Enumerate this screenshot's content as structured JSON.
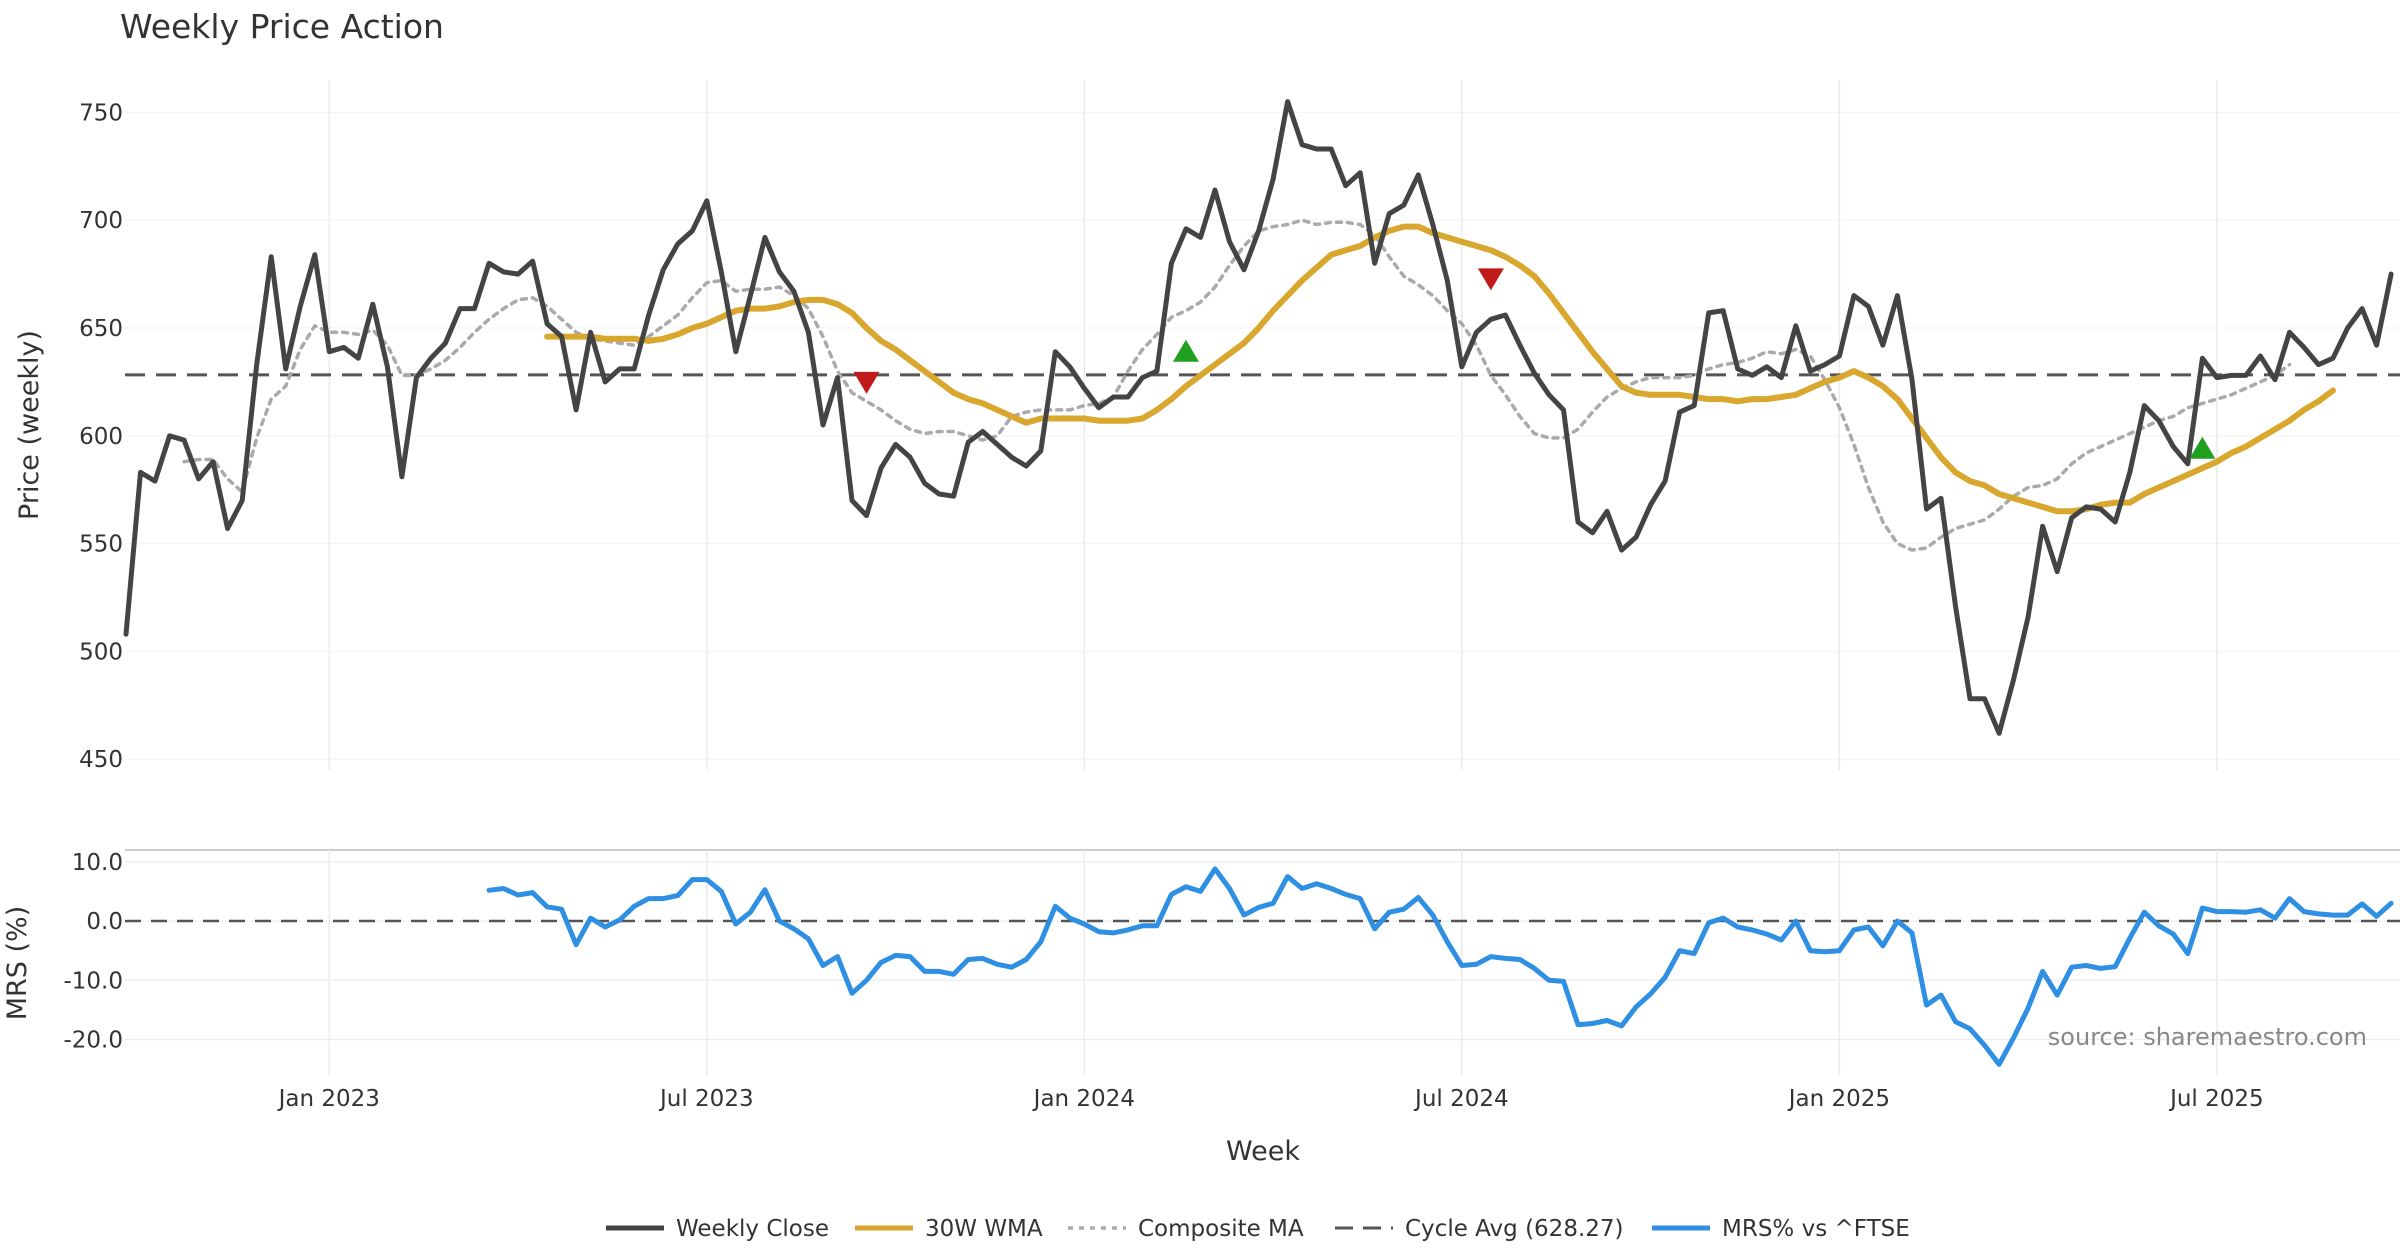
{
  "chart_data": {
    "type": "line",
    "title": "Weekly Price Action",
    "xlabel": "Week",
    "source": "source: sharemaestro.com",
    "x_ticks": [
      "Jan 2023",
      "Jul 2023",
      "Jan 2024",
      "Jul 2024",
      "Jan 2025",
      "Jul 2025"
    ],
    "x_tick_weeks": [
      14,
      40,
      66,
      92,
      118,
      144
    ],
    "price_panel": {
      "ylabel": "Price (weekly)",
      "ylim": [
        445,
        765
      ],
      "yticks": [
        450,
        500,
        550,
        600,
        650,
        700,
        750
      ],
      "cycle_avg": 628.27,
      "series": [
        {
          "name": "Weekly Close",
          "color": "#444444",
          "start_week": 0,
          "values": [
            508,
            583,
            579,
            600,
            598,
            580,
            588,
            557,
            570,
            633,
            683,
            631,
            660,
            684,
            639,
            641,
            636,
            661,
            632,
            581,
            627,
            636,
            643,
            659,
            659,
            680,
            676,
            675,
            681,
            652,
            646,
            612,
            648,
            625,
            631,
            631,
            656,
            677,
            689,
            695,
            709,
            676,
            639,
            665,
            692,
            676,
            667,
            648,
            605,
            627,
            570,
            563,
            585,
            596,
            590,
            578,
            573,
            572,
            597,
            602,
            596,
            590,
            586,
            593,
            639,
            632,
            622,
            613,
            618,
            618,
            627,
            630,
            680,
            696,
            692,
            714,
            690,
            677,
            695,
            719,
            755,
            735,
            733,
            733,
            716,
            722,
            680,
            703,
            707,
            721,
            698,
            672,
            632,
            648,
            654,
            656,
            642,
            629,
            619,
            612,
            560,
            555,
            565,
            547,
            553,
            568,
            579,
            611,
            614,
            657,
            658,
            631,
            628,
            632,
            627,
            651,
            630,
            633,
            637,
            665,
            660,
            642,
            665,
            626,
            566,
            571,
            521,
            478,
            478,
            462,
            487,
            516,
            558,
            537,
            562,
            567,
            566,
            560,
            583,
            614,
            607,
            595,
            587,
            636,
            627,
            628,
            628,
            637,
            626,
            648,
            641,
            633,
            636,
            650,
            659,
            642,
            675
          ]
        },
        {
          "name": "30W WMA",
          "color": "#D9A62E",
          "start_week": 29,
          "values": [
            646,
            646,
            646,
            646,
            645,
            645,
            645,
            644,
            645,
            647,
            650,
            652,
            655,
            658,
            659,
            659,
            660,
            662,
            663,
            663,
            661,
            657,
            650,
            644,
            640,
            635,
            630,
            625,
            620,
            617,
            615,
            612,
            609,
            606,
            608,
            608,
            608,
            608,
            607,
            607,
            607,
            608,
            612,
            617,
            623,
            628,
            633,
            638,
            643,
            650,
            658,
            665,
            672,
            678,
            684,
            686,
            688,
            692,
            695,
            697,
            697,
            694,
            692,
            690,
            688,
            686,
            683,
            679,
            674,
            666,
            657,
            648,
            639,
            631,
            623,
            620,
            619,
            619,
            619,
            618,
            617,
            617,
            616,
            617,
            617,
            618,
            619,
            622,
            625,
            627,
            630,
            627,
            623,
            617,
            608,
            599,
            590,
            583,
            579,
            577,
            573,
            571,
            569,
            567,
            565,
            565,
            566,
            568,
            569,
            569,
            573,
            576,
            579,
            582,
            585,
            588,
            592,
            595,
            599,
            603,
            607,
            612,
            616,
            621
          ]
        },
        {
          "name": "Composite MA",
          "color": "#AAAAAA",
          "start_week": 4,
          "values": [
            588,
            589,
            589,
            580,
            574,
            599,
            617,
            623,
            640,
            651,
            648,
            648,
            647,
            649,
            642,
            628,
            628,
            631,
            635,
            641,
            648,
            654,
            659,
            663,
            664,
            660,
            654,
            648,
            645,
            644,
            643,
            642,
            646,
            651,
            656,
            664,
            671,
            672,
            667,
            668,
            668,
            669,
            665,
            659,
            646,
            630,
            620,
            616,
            612,
            607,
            603,
            601,
            602,
            602,
            600,
            598,
            600,
            609,
            611,
            612,
            612,
            612,
            614,
            615,
            618,
            630,
            640,
            647,
            655,
            658,
            662,
            669,
            679,
            688,
            695,
            697,
            698,
            700,
            698,
            699,
            699,
            698,
            693,
            683,
            674,
            670,
            665,
            658,
            652,
            642,
            628,
            619,
            609,
            601,
            599,
            599,
            603,
            611,
            618,
            622,
            625,
            627,
            627,
            627,
            628,
            631,
            633,
            634,
            636,
            639,
            638,
            640,
            637,
            626,
            613,
            596,
            576,
            560,
            550,
            547,
            548,
            553,
            557,
            559,
            561,
            566,
            572,
            576,
            577,
            580,
            587,
            592,
            595,
            598,
            601,
            604,
            607,
            609,
            613,
            615,
            617,
            619,
            622,
            625,
            628,
            633
          ]
        }
      ],
      "markers": [
        {
          "type": "sell",
          "week": 51,
          "price": 625,
          "color": "#C11A1A"
        },
        {
          "type": "buy",
          "week": 73,
          "price": 639,
          "color": "#1FA01F"
        },
        {
          "type": "sell",
          "week": 94,
          "price": 673,
          "color": "#C11A1A"
        },
        {
          "type": "buy",
          "week": 143,
          "price": 594,
          "color": "#1FA01F"
        }
      ]
    },
    "mrs_panel": {
      "ylabel": "MRS (%)",
      "ylim": [
        -26,
        12
      ],
      "yticks": [
        10.0,
        0.0,
        -10.0,
        -20.0
      ],
      "ytick_labels": [
        "10.0",
        "0.0",
        "-10.0",
        "-20.0"
      ],
      "zero_line": 0.0,
      "series": {
        "name": "MRS% vs ^FTSE",
        "color": "#2F8FE3",
        "start_week": 25,
        "values": [
          5.2,
          5.5,
          4.4,
          4.8,
          2.4,
          2.0,
          -4.0,
          0.5,
          -1.0,
          0.2,
          2.5,
          3.8,
          3.8,
          4.3,
          7.0,
          7.0,
          5.0,
          -0.5,
          1.5,
          5.3,
          0.0,
          -1.3,
          -3.0,
          -7.5,
          -6.0,
          -12.2,
          -10.0,
          -7.0,
          -5.8,
          -6.0,
          -8.5,
          -8.5,
          -9.0,
          -6.5,
          -6.3,
          -7.3,
          -7.8,
          -6.5,
          -3.5,
          2.5,
          0.5,
          -0.5,
          -1.8,
          -2.0,
          -1.5,
          -0.8,
          -0.8,
          4.5,
          5.8,
          5.0,
          8.8,
          5.5,
          1.0,
          2.3,
          3.0,
          7.5,
          5.5,
          6.3,
          5.5,
          4.5,
          3.8,
          -1.3,
          1.5,
          2.0,
          4.0,
          1.0,
          -3.5,
          -7.5,
          -7.3,
          -6.0,
          -6.3,
          -6.5,
          -8.0,
          -10.0,
          -10.2,
          -17.5,
          -17.3,
          -16.8,
          -17.7,
          -14.5,
          -12.3,
          -9.5,
          -5.0,
          -5.5,
          -0.3,
          0.5,
          -1.0,
          -1.5,
          -2.2,
          -3.2,
          0.0,
          -5.0,
          -5.2,
          -5.0,
          -1.5,
          -1.0,
          -4.2,
          0.0,
          -2.0,
          -14.2,
          -12.5,
          -17.0,
          -18.2,
          -21.0,
          -24.2,
          -19.7,
          -14.7,
          -8.5,
          -12.5,
          -7.8,
          -7.5,
          -8.0,
          -7.7,
          -2.9,
          1.5,
          -0.8,
          -2.2,
          -5.5,
          2.2,
          1.6,
          1.6,
          1.5,
          1.9,
          0.5,
          3.8,
          1.6,
          1.2,
          1.0,
          1.0,
          2.9,
          0.8,
          3.0
        ]
      }
    },
    "legend": [
      {
        "label": "Weekly Close",
        "color": "#444444",
        "style": "solid"
      },
      {
        "label": "30W WMA",
        "color": "#D9A62E",
        "style": "solid"
      },
      {
        "label": "Composite MA",
        "color": "#AAAAAA",
        "style": "dotted"
      },
      {
        "label": "Cycle Avg (628.27)",
        "color": "#555555",
        "style": "dashed"
      },
      {
        "label": "MRS% vs ^FTSE",
        "color": "#2F8FE3",
        "style": "solid"
      }
    ]
  }
}
